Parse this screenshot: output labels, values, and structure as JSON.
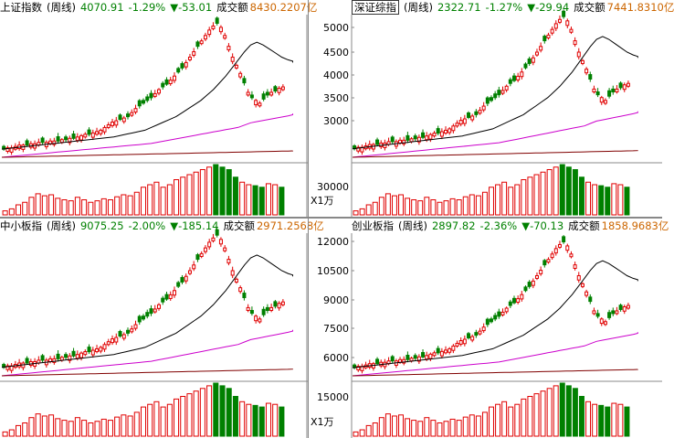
{
  "colors": {
    "up": "#e00000",
    "down": "#008000",
    "ma_short": "#000000",
    "ma_mid": "#cc00cc",
    "ma_long": "#800000",
    "volume_label": "#cc6600"
  },
  "panels": [
    {
      "id": "sh",
      "name": "上证指数",
      "period": "(周线)",
      "price": "4070.91",
      "pct": "-1.29%",
      "chg": "▼-53.01",
      "vol_label": "成交额",
      "vol": "8430.2207亿",
      "y_ticks": [],
      "vol_ticks": [],
      "unit": ""
    },
    {
      "id": "sz",
      "name": "深证综指",
      "period": "(周线)",
      "price": "2322.71",
      "pct": "-1.27%",
      "chg": "▼-29.94",
      "vol_label": "成交额",
      "vol": "7441.8310亿",
      "y_ticks": [
        "5000",
        "4500",
        "4000",
        "3500",
        "3000"
      ],
      "vol_ticks": [
        "30000"
      ],
      "unit": "X1万"
    },
    {
      "id": "zxb",
      "name": "中小板指",
      "period": "(周线)",
      "price": "9075.25",
      "pct": "-2.00%",
      "chg": "▼-185.14",
      "vol_label": "成交额",
      "vol": "2971.2568亿",
      "y_ticks": [],
      "vol_ticks": [],
      "unit": ""
    },
    {
      "id": "cyb",
      "name": "创业板指",
      "period": "(周线)",
      "price": "2897.82",
      "pct": "-2.36%",
      "chg": "▼-70.13",
      "vol_label": "成交额",
      "vol": "1858.9683亿",
      "y_ticks": [
        "12000",
        "10500",
        "9000",
        "7500",
        "6000"
      ],
      "vol_ticks": [
        "15000"
      ],
      "unit": "X1万"
    }
  ],
  "candles": [
    [
      0,
      1,
      1,
      1,
      1,
      1,
      0,
      1,
      1,
      1,
      0,
      1,
      1,
      1,
      0,
      1,
      0,
      1,
      0,
      1,
      1,
      1,
      0,
      1,
      1,
      1,
      1,
      1,
      1,
      1,
      0,
      1,
      0,
      1,
      1,
      0,
      0,
      0,
      0,
      1,
      1,
      0,
      0,
      1,
      1,
      0,
      0,
      1,
      1,
      1,
      0,
      1,
      1,
      1,
      1,
      0,
      1,
      1,
      1,
      1,
      1,
      1,
      0,
      1,
      0,
      1,
      1,
      0,
      0,
      1,
      0,
      1,
      1
    ],
    [
      0.06,
      0.07,
      0.07,
      0.08,
      0.09,
      0.09,
      0.09,
      0.1,
      0.1,
      0.11,
      0.11,
      0.11,
      0.12,
      0.12,
      0.12,
      0.13,
      0.13,
      0.14,
      0.14,
      0.15,
      0.16,
      0.17,
      0.17,
      0.18,
      0.19,
      0.2,
      0.22,
      0.24,
      0.26,
      0.27,
      0.28,
      0.29,
      0.3,
      0.33,
      0.36,
      0.38,
      0.4,
      0.42,
      0.44,
      0.47,
      0.5,
      0.52,
      0.54,
      0.57,
      0.6,
      0.63,
      0.66,
      0.7,
      0.74,
      0.78,
      0.82,
      0.86,
      0.9,
      0.94,
      0.97,
      0.99,
      0.96,
      0.9,
      0.82,
      0.74,
      0.68,
      0.62,
      0.55,
      0.48,
      0.44,
      0.42,
      0.4,
      0.43,
      0.46,
      0.48,
      0.49,
      0.51,
      0.52
    ]
  ],
  "ma_paths": {
    "short": [
      0.06,
      0.065,
      0.07,
      0.075,
      0.08,
      0.085,
      0.09,
      0.095,
      0.1,
      0.105,
      0.11,
      0.115,
      0.12,
      0.125,
      0.13,
      0.135,
      0.14,
      0.145,
      0.15,
      0.16,
      0.17,
      0.18,
      0.19,
      0.2,
      0.22,
      0.24,
      0.26,
      0.28,
      0.3,
      0.33,
      0.36,
      0.39,
      0.42,
      0.46,
      0.5,
      0.55,
      0.6,
      0.66,
      0.72,
      0.78,
      0.83,
      0.85,
      0.83,
      0.8,
      0.77,
      0.74,
      0.72,
      0.71,
      0.7
    ],
    "mid": [
      0.0,
      0.005,
      0.01,
      0.015,
      0.02,
      0.025,
      0.03,
      0.035,
      0.04,
      0.045,
      0.05,
      0.055,
      0.06,
      0.065,
      0.07,
      0.075,
      0.08,
      0.085,
      0.09,
      0.095,
      0.1,
      0.105,
      0.11,
      0.115,
      0.12,
      0.13,
      0.14,
      0.15,
      0.16,
      0.17,
      0.18,
      0.19,
      0.2,
      0.21,
      0.22,
      0.23,
      0.24,
      0.25,
      0.26,
      0.28,
      0.3,
      0.31,
      0.32,
      0.33,
      0.34,
      0.35,
      0.36,
      0.37,
      0.38
    ],
    "long": [
      0.0,
      0.002,
      0.004,
      0.006,
      0.008,
      0.01,
      0.012,
      0.014,
      0.016,
      0.018,
      0.02,
      0.022,
      0.024,
      0.026,
      0.028,
      0.03,
      0.032,
      0.034,
      0.036,
      0.038,
      0.04,
      0.042,
      0.044,
      0.046,
      0.048,
      0.05,
      0.052,
      0.054,
      0.056,
      0.058,
      0.06,
      0.062,
      0.064,
      0.066,
      0.068,
      0.07,
      0.072,
      0.074,
      0.076,
      0.078,
      0.08,
      0.082,
      0.084,
      0.086,
      0.088,
      0.09,
      0.092,
      0.094,
      0.096
    ]
  },
  "volume_series": [
    0.08,
    0.12,
    0.2,
    0.25,
    0.35,
    0.42,
    0.38,
    0.4,
    0.33,
    0.3,
    0.28,
    0.35,
    0.3,
    0.25,
    0.28,
    0.32,
    0.3,
    0.36,
    0.4,
    0.38,
    0.45,
    0.55,
    0.6,
    0.65,
    0.55,
    0.6,
    0.7,
    0.75,
    0.8,
    0.85,
    0.9,
    0.95,
    1.0,
    0.95,
    0.9,
    0.75,
    0.65,
    0.6,
    0.58,
    0.55,
    0.62,
    0.6,
    0.55
  ]
}
